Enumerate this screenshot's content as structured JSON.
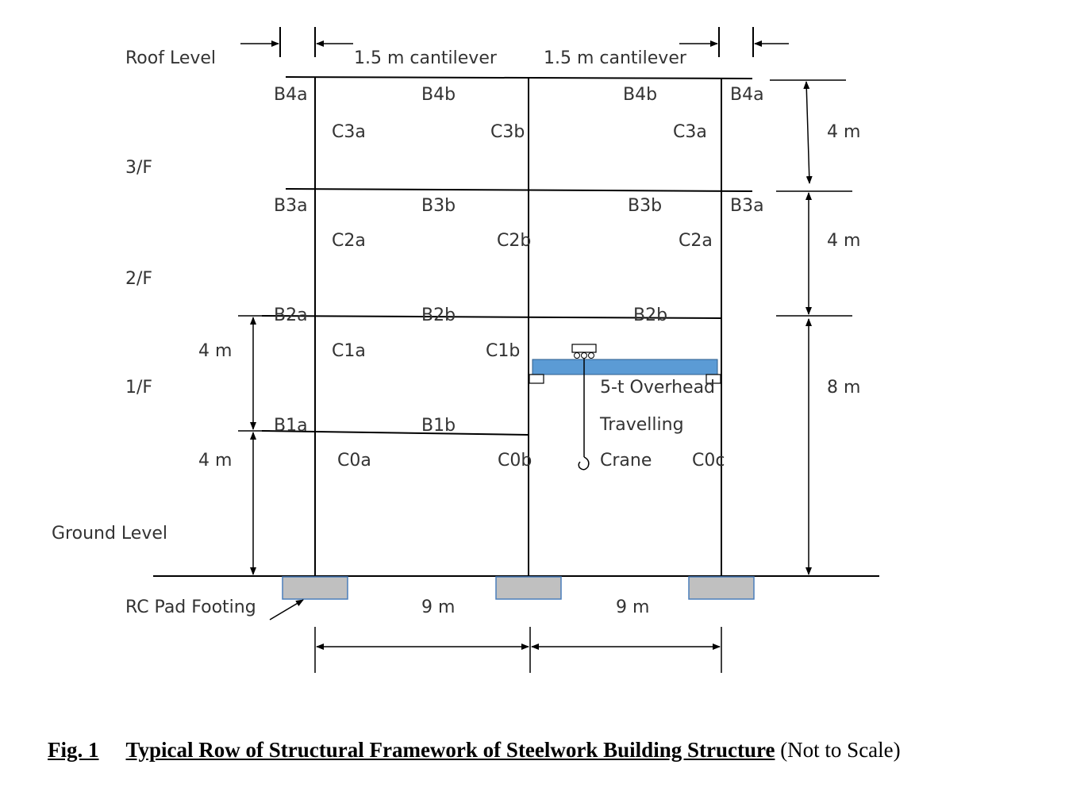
{
  "levels": {
    "roof": "Roof Level",
    "third": "3/F",
    "second": "2/F",
    "first": "1/F",
    "ground": "Ground Level",
    "footing": "RC Pad Footing"
  },
  "cantilevers": {
    "left": "1.5 m cantilever",
    "right": "1.5 m cantilever"
  },
  "beams": {
    "b4a_left": "B4a",
    "b4b_left": "B4b",
    "b4b_right": "B4b",
    "b4a_right": "B4a",
    "b3a_left": "B3a",
    "b3b_left": "B3b",
    "b3b_right": "B3b",
    "b3a_right": "B3a",
    "b2a": "B2a",
    "b2b_left": "B2b",
    "b2b_right": "B2b",
    "b1a": "B1a",
    "b1b": "B1b"
  },
  "columns": {
    "c3a_left": "C3a",
    "c3b": "C3b",
    "c3a_right": "C3a",
    "c2a_left": "C2a",
    "c2b": "C2b",
    "c2a_right": "C2a",
    "c1a": "C1a",
    "c1b": "C1b",
    "c0a": "C0a",
    "c0b": "C0b",
    "c0c": "C0c"
  },
  "dimensions": {
    "right_top": "4 m",
    "right_mid": "4 m",
    "right_bottom": "8 m",
    "left_upper": "4 m",
    "left_lower": "4 m",
    "span_left": "9 m",
    "span_right": "9 m"
  },
  "crane": {
    "line1": "5-t Overhead",
    "line2": "Travelling",
    "line3": "Crane"
  },
  "colors": {
    "crane_beam": "#5b9bd5",
    "footing": "#c0c0c0",
    "footing_border": "#4a7ebb",
    "line": "#000000"
  },
  "caption": {
    "fig": "Fig. 1",
    "title": "Typical Row of Structural Framework of Steelwork Building Structure",
    "note": " (Not to Scale)"
  }
}
